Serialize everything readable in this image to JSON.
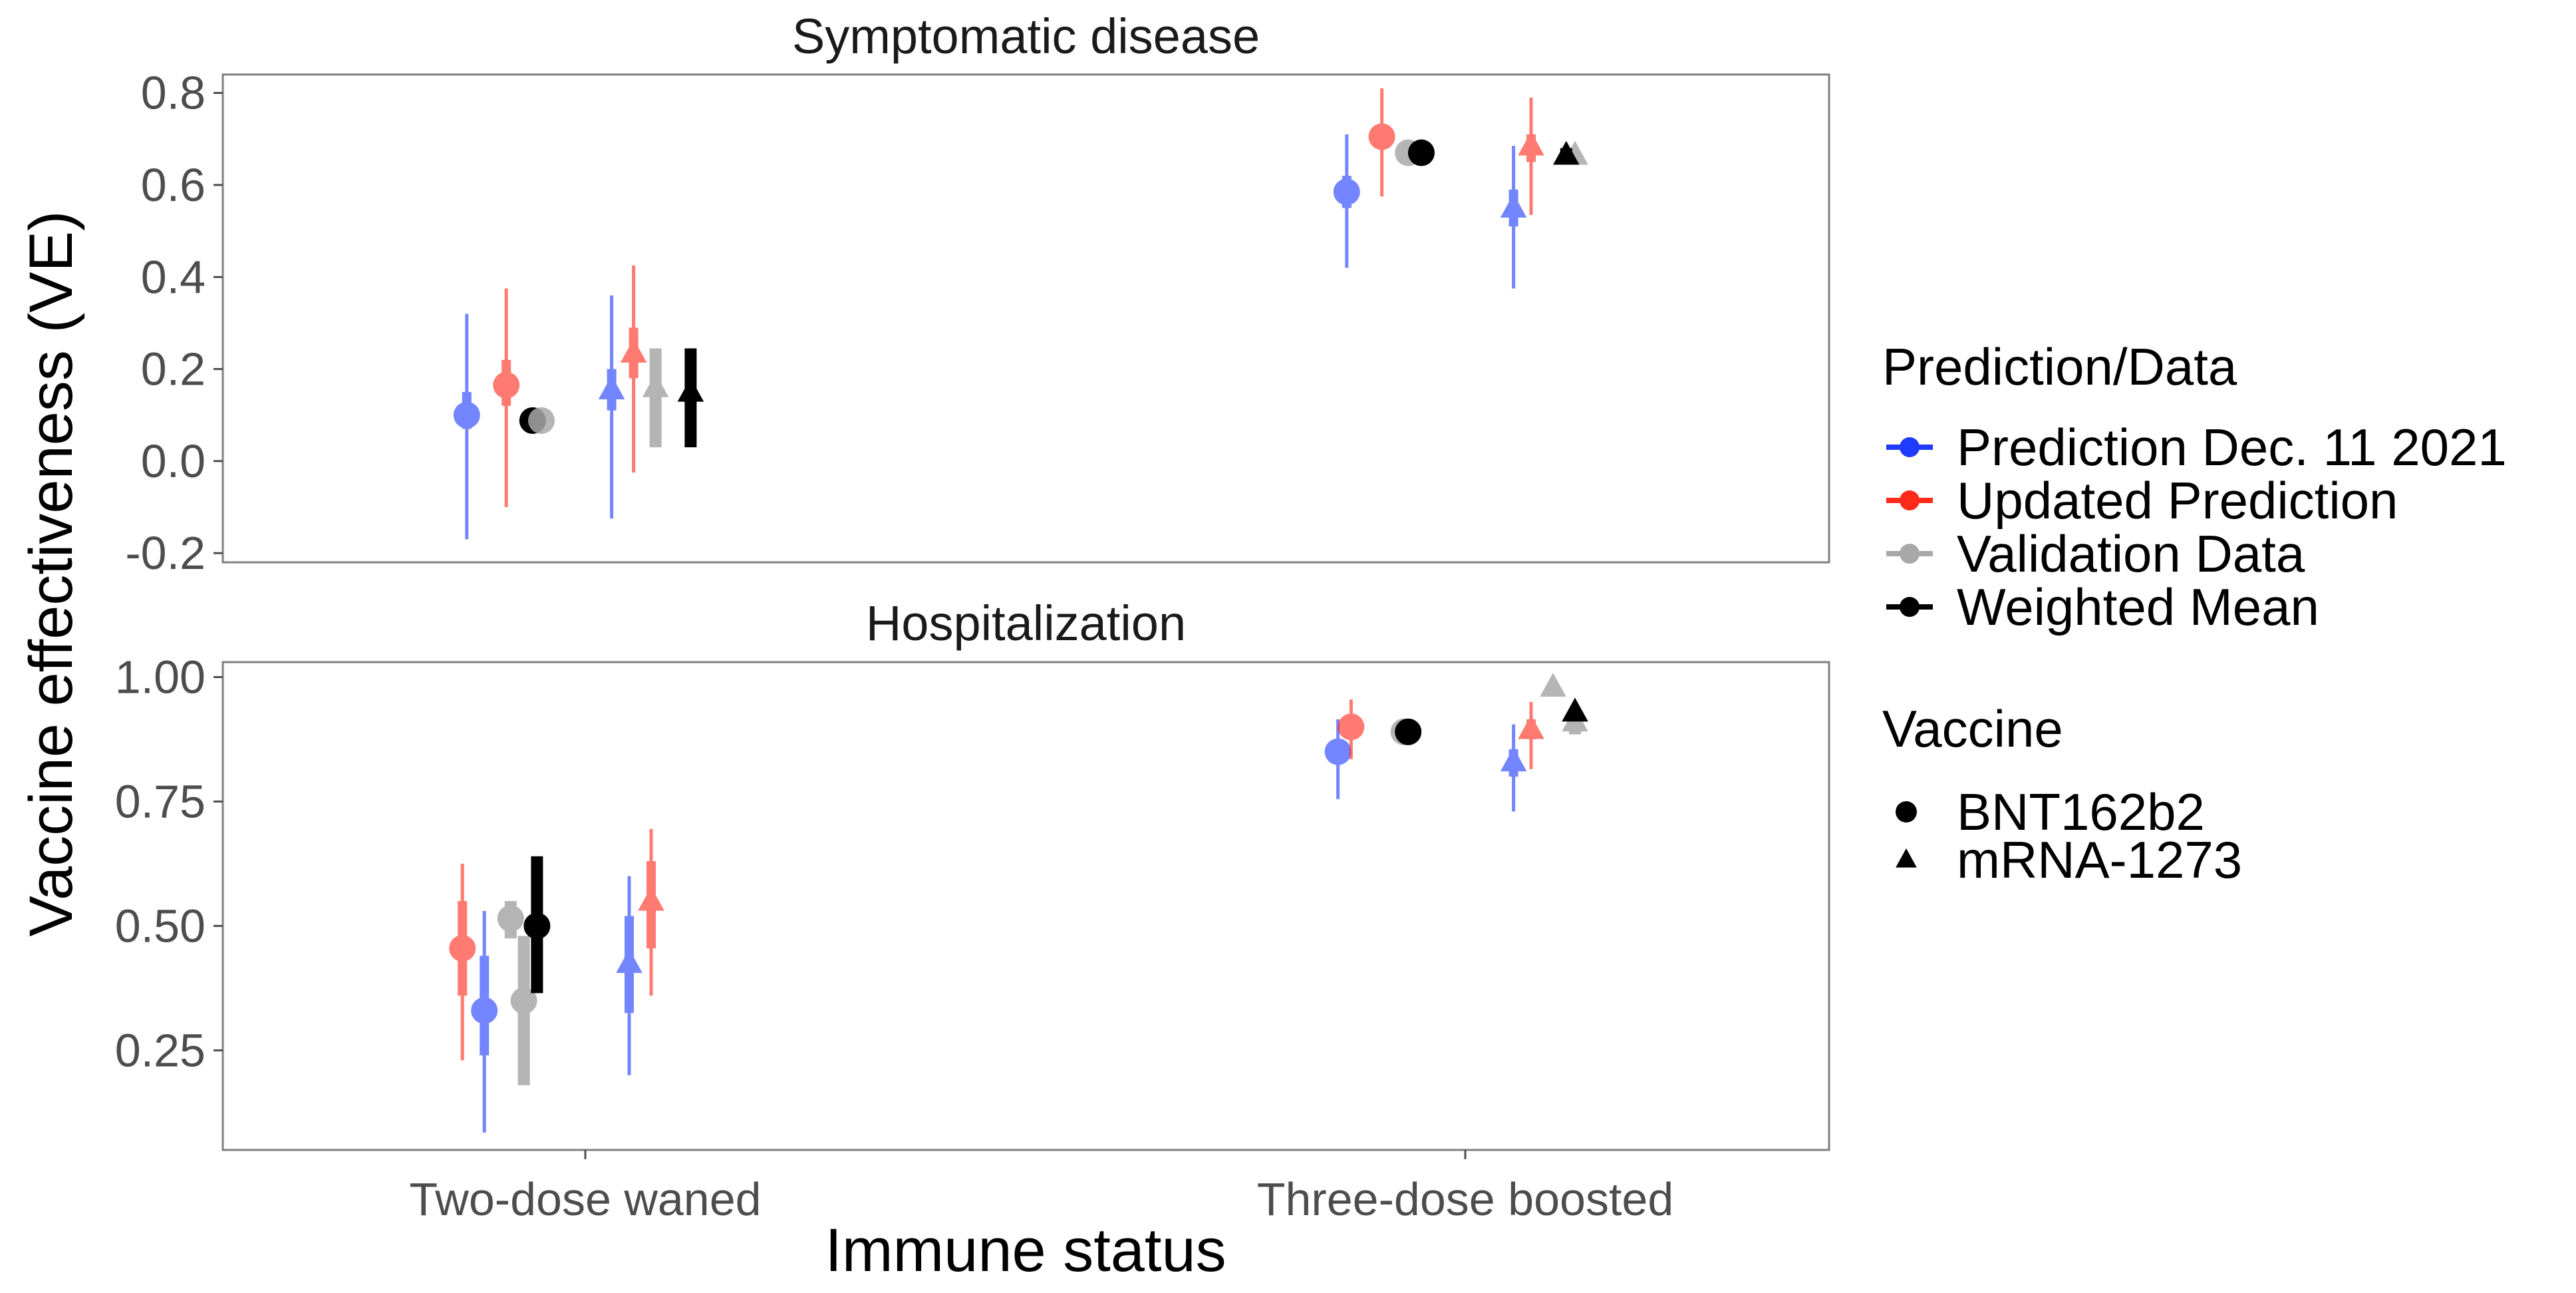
{
  "chart_data": {
    "type": "scatter",
    "subtype": "point-range (faceted)",
    "ylabel": "Vaccine effectiveness (VE)",
    "xlabel": "Immune status",
    "categories": [
      "Two-dose waned",
      "Three-dose boosted"
    ],
    "legend": {
      "placement": "right",
      "color_title": "Prediction/Data",
      "color_entries": [
        {
          "key": "pred",
          "label": "Prediction Dec. 11 2021",
          "color": "#1f3bff"
        },
        {
          "key": "upd",
          "label": "Updated Prediction",
          "color": "#ff2a1a"
        },
        {
          "key": "val",
          "label": "Validation Data",
          "color": "#a8a8a8"
        },
        {
          "key": "wm",
          "label": "Weighted Mean",
          "color": "#000000"
        }
      ],
      "shape_title": "Vaccine",
      "shape_entries": [
        {
          "key": "bnt",
          "label": "BNT162b2",
          "shape": "circle"
        },
        {
          "key": "mrna",
          "label": "mRNA-1273",
          "shape": "triangle"
        }
      ]
    },
    "facets": [
      {
        "title": "Symptomatic disease",
        "ylim": [
          -0.22,
          0.84
        ],
        "yticks": [
          -0.2,
          0.0,
          0.2,
          0.4,
          0.6,
          0.8
        ],
        "ytick_labels": [
          "-0.2",
          "0.0",
          "0.2",
          "0.4",
          "0.6",
          "0.8"
        ],
        "points": [
          {
            "cat": 0,
            "offset": -0.27,
            "series": "pred",
            "vaccine": "bnt",
            "y": 0.1,
            "lo": -0.17,
            "hi": 0.32,
            "lo50": 0.07,
            "hi50": 0.15
          },
          {
            "cat": 0,
            "offset": -0.18,
            "series": "upd",
            "vaccine": "bnt",
            "y": 0.165,
            "lo": -0.1,
            "hi": 0.375,
            "lo50": 0.12,
            "hi50": 0.22
          },
          {
            "cat": 0,
            "offset": -0.12,
            "series": "wm",
            "vaccine": "bnt",
            "y": 0.088
          },
          {
            "cat": 0,
            "offset": -0.1,
            "series": "val",
            "vaccine": "bnt",
            "y": 0.088
          },
          {
            "cat": 0,
            "offset": 0.06,
            "series": "pred",
            "vaccine": "mrna",
            "y": 0.155,
            "lo": -0.125,
            "hi": 0.36,
            "lo50": 0.11,
            "hi50": 0.2
          },
          {
            "cat": 0,
            "offset": 0.11,
            "series": "upd",
            "vaccine": "mrna",
            "y": 0.235,
            "lo": -0.025,
            "hi": 0.425,
            "lo50": 0.18,
            "hi50": 0.29
          },
          {
            "cat": 0,
            "offset": 0.16,
            "series": "val",
            "vaccine": "mrna",
            "y": 0.16,
            "lo50": 0.03,
            "hi50": 0.245
          },
          {
            "cat": 0,
            "offset": 0.24,
            "series": "wm",
            "vaccine": "mrna",
            "y": 0.15,
            "lo50": 0.03,
            "hi50": 0.245
          },
          {
            "cat": 1,
            "offset": -0.27,
            "series": "pred",
            "vaccine": "bnt",
            "y": 0.585,
            "lo": 0.42,
            "hi": 0.71,
            "lo50": 0.55,
            "hi50": 0.62
          },
          {
            "cat": 1,
            "offset": -0.19,
            "series": "upd",
            "vaccine": "bnt",
            "y": 0.705,
            "lo": 0.575,
            "hi": 0.81,
            "lo50": 0.68,
            "hi50": 0.73
          },
          {
            "cat": 1,
            "offset": -0.13,
            "series": "val",
            "vaccine": "bnt",
            "y": 0.67
          },
          {
            "cat": 1,
            "offset": -0.1,
            "series": "wm",
            "vaccine": "bnt",
            "y": 0.67
          },
          {
            "cat": 1,
            "offset": 0.11,
            "series": "pred",
            "vaccine": "mrna",
            "y": 0.55,
            "lo": 0.375,
            "hi": 0.685,
            "lo50": 0.51,
            "hi50": 0.59
          },
          {
            "cat": 1,
            "offset": 0.15,
            "series": "upd",
            "vaccine": "mrna",
            "y": 0.685,
            "lo": 0.535,
            "hi": 0.79,
            "lo50": 0.65,
            "hi50": 0.71
          },
          {
            "cat": 1,
            "offset": 0.25,
            "series": "val",
            "vaccine": "mrna",
            "y": 0.665
          },
          {
            "cat": 1,
            "offset": 0.23,
            "series": "wm",
            "vaccine": "mrna",
            "y": 0.665,
            "lo50": 0.645,
            "hi50": 0.68
          }
        ]
      },
      {
        "title": "Hospitalization",
        "ylim": [
          0.05,
          1.03
        ],
        "yticks": [
          0.25,
          0.5,
          0.75,
          1.0
        ],
        "ytick_labels": [
          "0.25",
          "0.50",
          "0.75",
          "1.00"
        ],
        "points": [
          {
            "cat": 0,
            "offset": -0.28,
            "series": "upd",
            "vaccine": "bnt",
            "y": 0.455,
            "lo": 0.23,
            "hi": 0.625,
            "lo50": 0.36,
            "hi50": 0.55
          },
          {
            "cat": 0,
            "offset": -0.23,
            "series": "pred",
            "vaccine": "bnt",
            "y": 0.33,
            "lo": 0.085,
            "hi": 0.53,
            "lo50": 0.24,
            "hi50": 0.44
          },
          {
            "cat": 0,
            "offset": -0.17,
            "series": "val",
            "vaccine": "bnt",
            "y": 0.515,
            "lo50": 0.475,
            "hi50": 0.55
          },
          {
            "cat": 0,
            "offset": -0.14,
            "series": "val",
            "vaccine": "bnt",
            "y": 0.35,
            "lo50": 0.18,
            "hi50": 0.48
          },
          {
            "cat": 0,
            "offset": -0.11,
            "series": "wm",
            "vaccine": "bnt",
            "y": 0.5,
            "lo50": 0.365,
            "hi50": 0.64
          },
          {
            "cat": 0,
            "offset": 0.1,
            "series": "pred",
            "vaccine": "mrna",
            "y": 0.425,
            "lo": 0.2,
            "hi": 0.6,
            "lo50": 0.325,
            "hi50": 0.52
          },
          {
            "cat": 0,
            "offset": 0.15,
            "series": "upd",
            "vaccine": "mrna",
            "y": 0.55,
            "lo": 0.36,
            "hi": 0.695,
            "lo50": 0.455,
            "hi50": 0.63
          },
          {
            "cat": 1,
            "offset": -0.29,
            "series": "pred",
            "vaccine": "bnt",
            "y": 0.85,
            "lo": 0.755,
            "hi": 0.915,
            "lo50": 0.825,
            "hi50": 0.87
          },
          {
            "cat": 1,
            "offset": -0.26,
            "series": "upd",
            "vaccine": "bnt",
            "y": 0.9,
            "lo": 0.835,
            "hi": 0.955,
            "lo50": 0.88,
            "hi50": 0.915
          },
          {
            "cat": 1,
            "offset": -0.14,
            "series": "val",
            "vaccine": "bnt",
            "y": 0.89
          },
          {
            "cat": 1,
            "offset": -0.13,
            "series": "wm",
            "vaccine": "bnt",
            "y": 0.89
          },
          {
            "cat": 1,
            "offset": 0.11,
            "series": "pred",
            "vaccine": "mrna",
            "y": 0.83,
            "lo": 0.73,
            "hi": 0.905,
            "lo50": 0.8,
            "hi50": 0.855
          },
          {
            "cat": 1,
            "offset": 0.15,
            "series": "upd",
            "vaccine": "mrna",
            "y": 0.895,
            "lo": 0.815,
            "hi": 0.95,
            "lo50": 0.875,
            "hi50": 0.915
          },
          {
            "cat": 1,
            "offset": 0.2,
            "series": "val",
            "vaccine": "mrna",
            "y": 0.98
          },
          {
            "cat": 1,
            "offset": 0.25,
            "series": "val",
            "vaccine": "mrna",
            "y": 0.91,
            "lo50": 0.885,
            "hi50": 0.925
          },
          {
            "cat": 1,
            "offset": 0.25,
            "series": "wm",
            "vaccine": "mrna",
            "y": 0.93
          }
        ]
      }
    ]
  }
}
